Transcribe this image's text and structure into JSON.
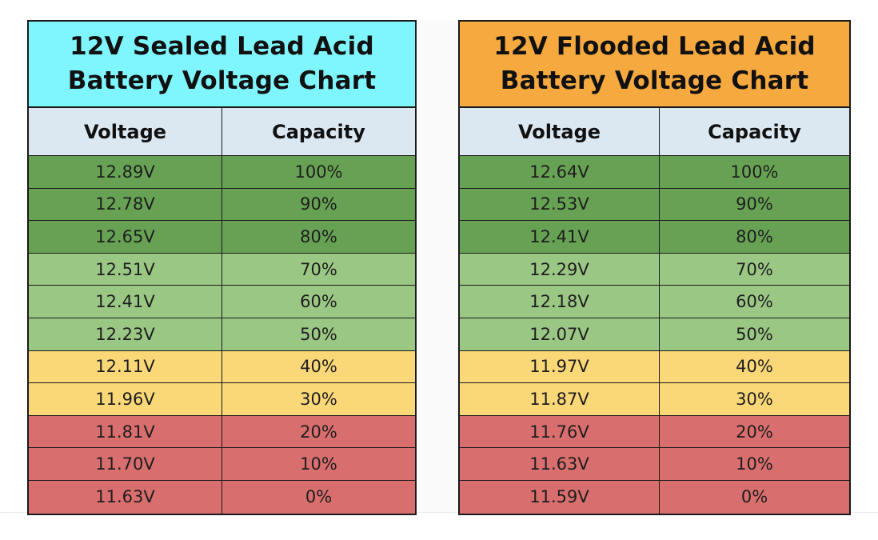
{
  "tables": [
    {
      "title_line1": "12V Sealed Lead Acid",
      "title_line2": "Battery Voltage Chart",
      "title_color": "#7ff5fd",
      "col_voltage": "Voltage",
      "col_capacity": "Capacity",
      "rows": [
        {
          "voltage": "12.89V",
          "capacity": "100%",
          "status": "high"
        },
        {
          "voltage": "12.78V",
          "capacity": "90%",
          "status": "high"
        },
        {
          "voltage": "12.65V",
          "capacity": "80%",
          "status": "high"
        },
        {
          "voltage": "12.51V",
          "capacity": "70%",
          "status": "good"
        },
        {
          "voltage": "12.41V",
          "capacity": "60%",
          "status": "good"
        },
        {
          "voltage": "12.23V",
          "capacity": "50%",
          "status": "good"
        },
        {
          "voltage": "12.11V",
          "capacity": "40%",
          "status": "medium"
        },
        {
          "voltage": "11.96V",
          "capacity": "30%",
          "status": "medium"
        },
        {
          "voltage": "11.81V",
          "capacity": "20%",
          "status": "low"
        },
        {
          "voltage": "11.70V",
          "capacity": "10%",
          "status": "low"
        },
        {
          "voltage": "11.63V",
          "capacity": "0%",
          "status": "low"
        }
      ]
    },
    {
      "title_line1": "12V Flooded Lead Acid",
      "title_line2": "Battery Voltage Chart",
      "title_color": "#f5a93f",
      "col_voltage": "Voltage",
      "col_capacity": "Capacity",
      "rows": [
        {
          "voltage": "12.64V",
          "capacity": "100%",
          "status": "high"
        },
        {
          "voltage": "12.53V",
          "capacity": "90%",
          "status": "high"
        },
        {
          "voltage": "12.41V",
          "capacity": "80%",
          "status": "high"
        },
        {
          "voltage": "12.29V",
          "capacity": "70%",
          "status": "good"
        },
        {
          "voltage": "12.18V",
          "capacity": "60%",
          "status": "good"
        },
        {
          "voltage": "12.07V",
          "capacity": "50%",
          "status": "good"
        },
        {
          "voltage": "11.97V",
          "capacity": "40%",
          "status": "medium"
        },
        {
          "voltage": "11.87V",
          "capacity": "30%",
          "status": "medium"
        },
        {
          "voltage": "11.76V",
          "capacity": "20%",
          "status": "low"
        },
        {
          "voltage": "11.63V",
          "capacity": "10%",
          "status": "low"
        },
        {
          "voltage": "11.59V",
          "capacity": "0%",
          "status": "low"
        }
      ]
    }
  ],
  "status_colors": {
    "high": "#67a254",
    "good": "#9bc785",
    "medium": "#fad878",
    "low": "#d86e6d"
  },
  "header_row_color": "#dbe7f1"
}
